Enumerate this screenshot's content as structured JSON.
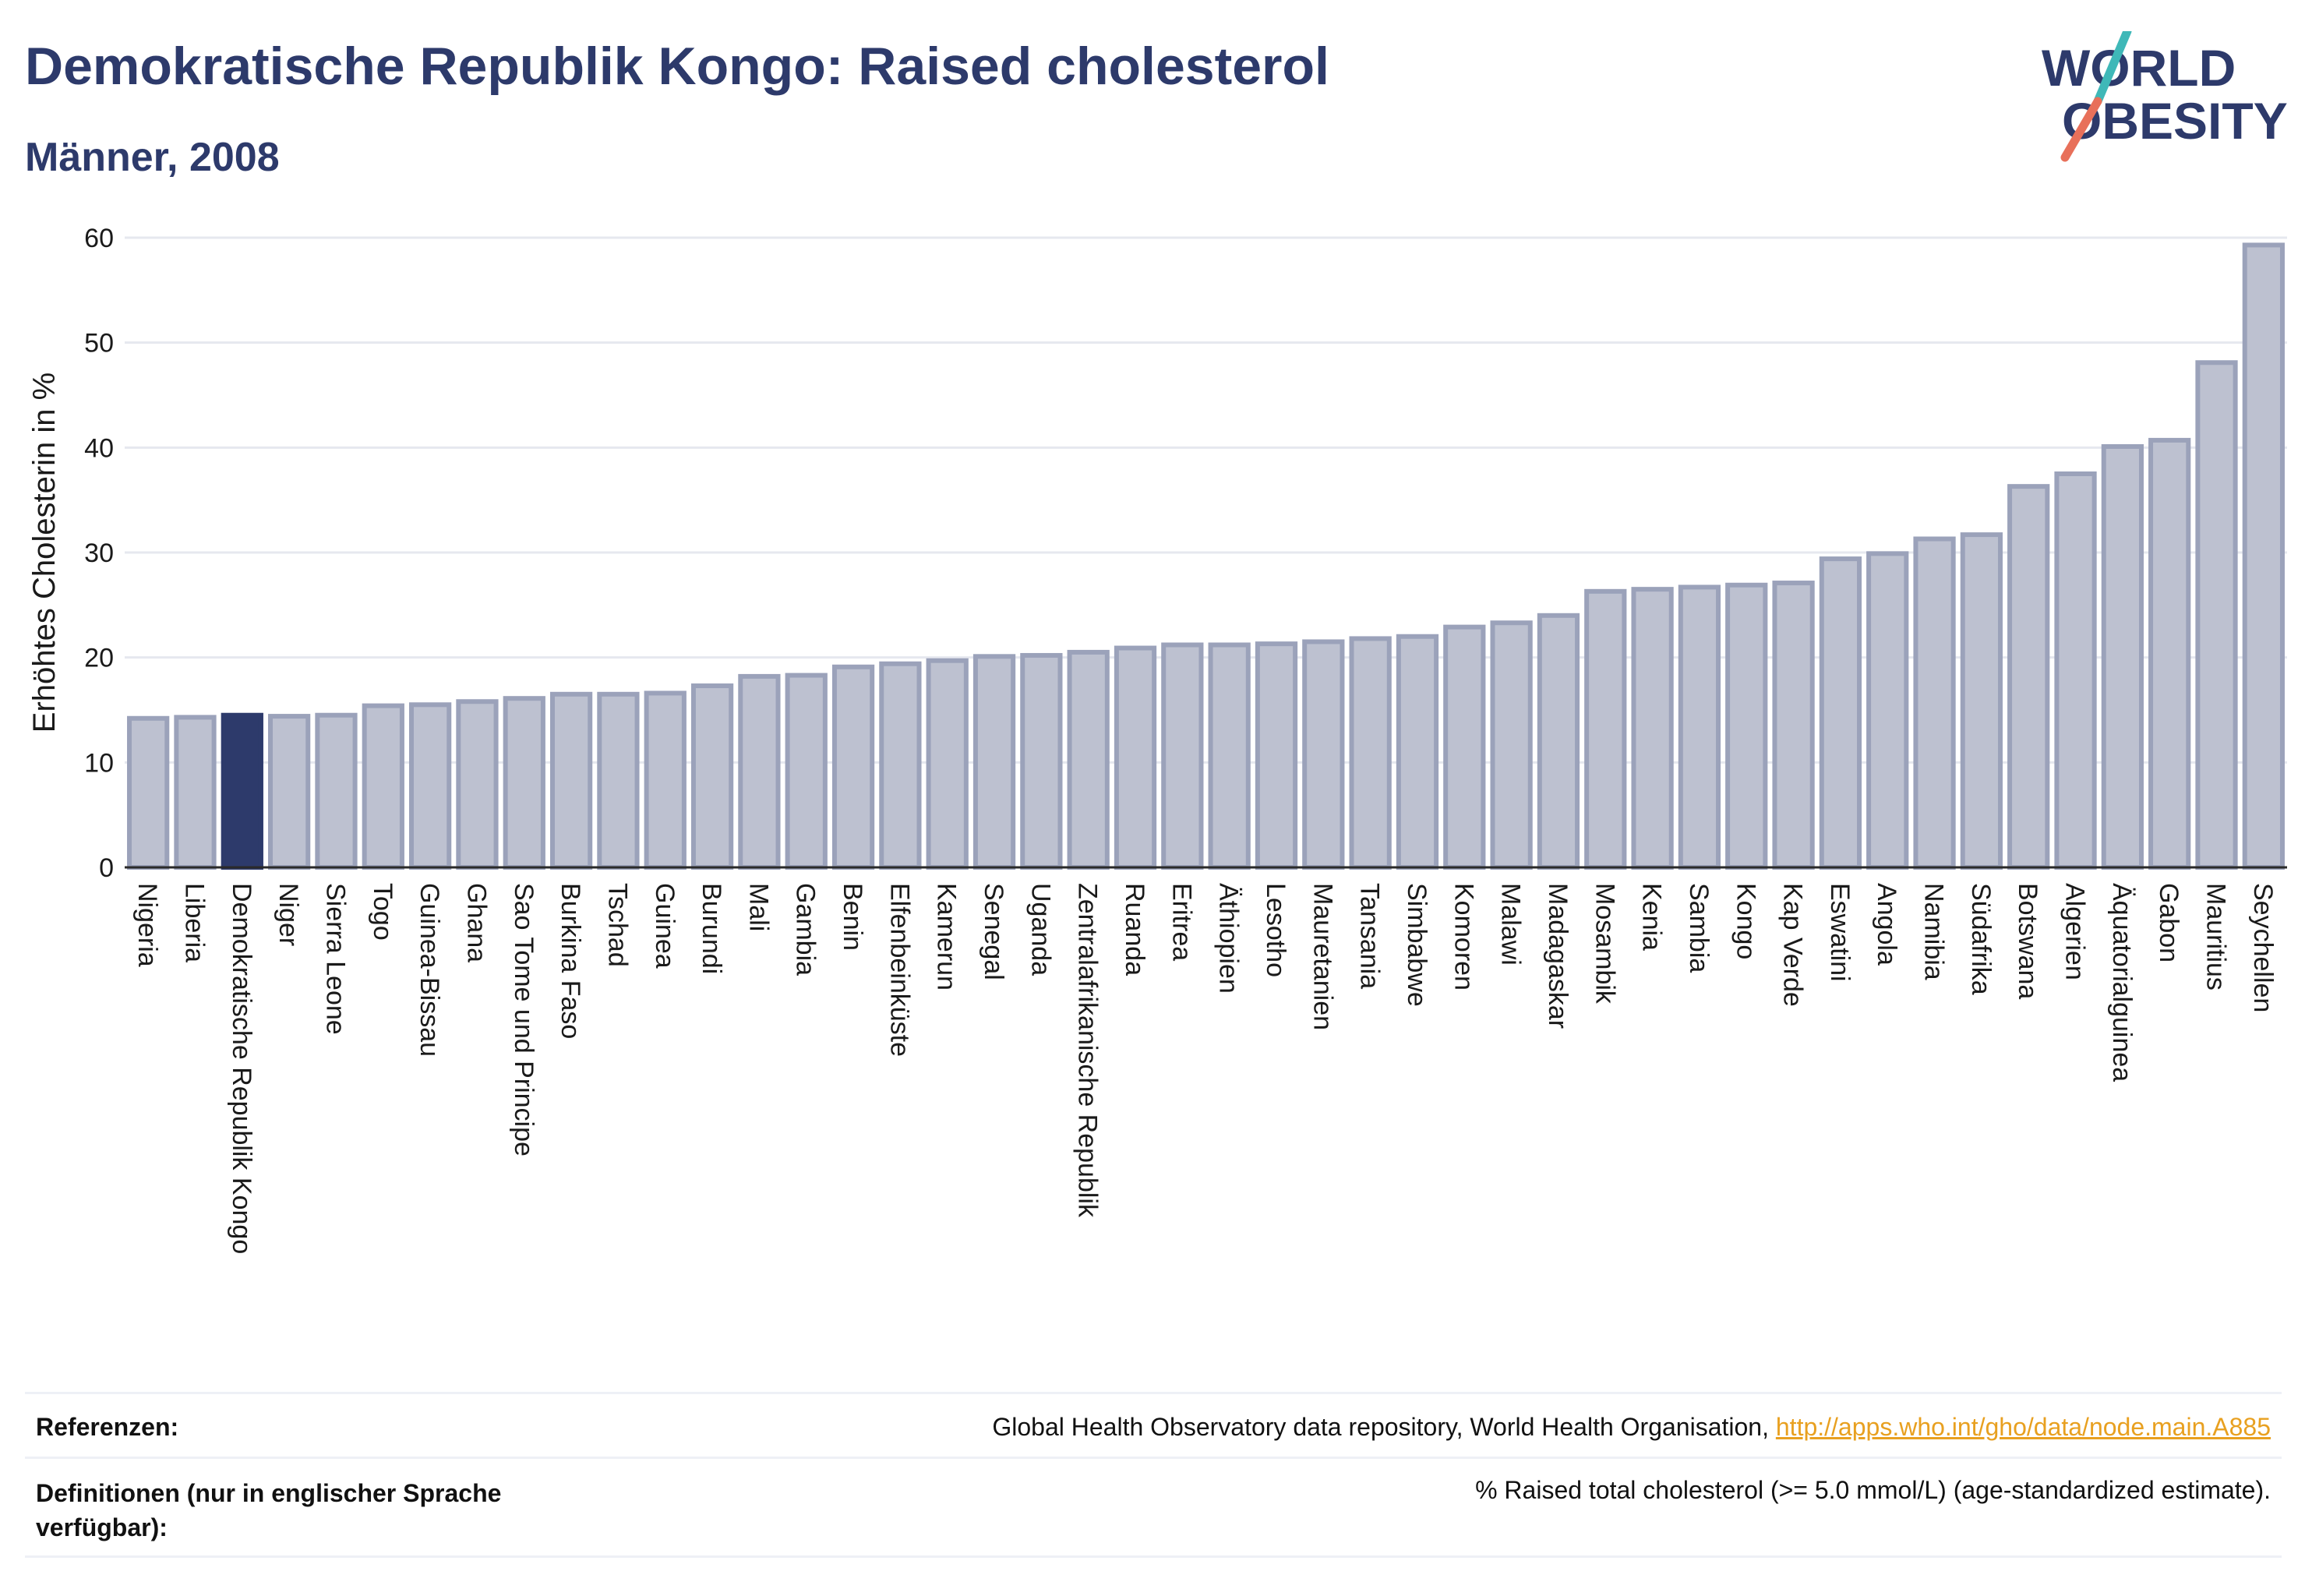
{
  "header": {
    "title": "Demokratische Republik Kongo: Raised cholesterol",
    "subtitle": "Männer, 2008"
  },
  "logo": {
    "line1": "WORLD",
    "line2": "OBESITY"
  },
  "colors": {
    "highlight": "#2d3a6b",
    "bar_fill": "#bdc1d0",
    "bar_stroke": "#9ba2ba",
    "title": "#2d3a6b",
    "logo_slash_teal": "#3fb8b8",
    "logo_slash_coral": "#e8705a",
    "link": "#e8a020"
  },
  "chart_data": {
    "type": "bar",
    "ylabel": "Erhöhtes Cholesterin in %",
    "xlabel": "",
    "ylim": [
      0,
      60
    ],
    "yticks": [
      0,
      10,
      20,
      30,
      40,
      50,
      60
    ],
    "grid": true,
    "highlight_category": "Demokratische Republik Kongo",
    "categories": [
      "Nigeria",
      "Liberia",
      "Demokratische Republik Kongo",
      "Niger",
      "Sierra Leone",
      "Togo",
      "Guinea-Bissau",
      "Ghana",
      "Sao Tome und Principe",
      "Burkina Faso",
      "Tschad",
      "Guinea",
      "Burundi",
      "Mali",
      "Gambia",
      "Benin",
      "Elfenbeinküste",
      "Kamerun",
      "Senegal",
      "Uganda",
      "Zentralafrikanische Republik",
      "Ruanda",
      "Eritrea",
      "Äthiopien",
      "Lesotho",
      "Mauretanien",
      "Tansania",
      "Simbabwe",
      "Komoren",
      "Malawi",
      "Madagaskar",
      "Mosambik",
      "Kenia",
      "Sambia",
      "Kongo",
      "Kap Verde",
      "Eswatini",
      "Angola",
      "Namibia",
      "Südafrika",
      "Botswana",
      "Algerien",
      "Äquatorialguinea",
      "Gabon",
      "Mauritius",
      "Seychellen"
    ],
    "values": [
      14.2,
      14.3,
      14.5,
      14.4,
      14.5,
      15.4,
      15.5,
      15.8,
      16.1,
      16.5,
      16.5,
      16.6,
      17.3,
      18.2,
      18.3,
      19.1,
      19.4,
      19.7,
      20.1,
      20.2,
      20.5,
      20.9,
      21.2,
      21.2,
      21.3,
      21.5,
      21.8,
      22.0,
      22.9,
      23.3,
      24.0,
      26.3,
      26.5,
      26.7,
      26.9,
      27.1,
      29.4,
      29.9,
      31.3,
      31.7,
      36.3,
      37.5,
      40.1,
      40.7,
      48.1,
      59.3
    ]
  },
  "references": {
    "label": "Referenzen:",
    "text": "Global Health Observatory data repository, World Health Organisation, ",
    "link": "http://apps.who.int/gho/data/node.main.A885"
  },
  "definitions": {
    "label_line1": "Definitionen (nur in englischer Sprache",
    "label_line2": "verfügbar):",
    "text": "% Raised total cholesterol (>= 5.0 mmol/L) (age-standardized estimate)."
  }
}
